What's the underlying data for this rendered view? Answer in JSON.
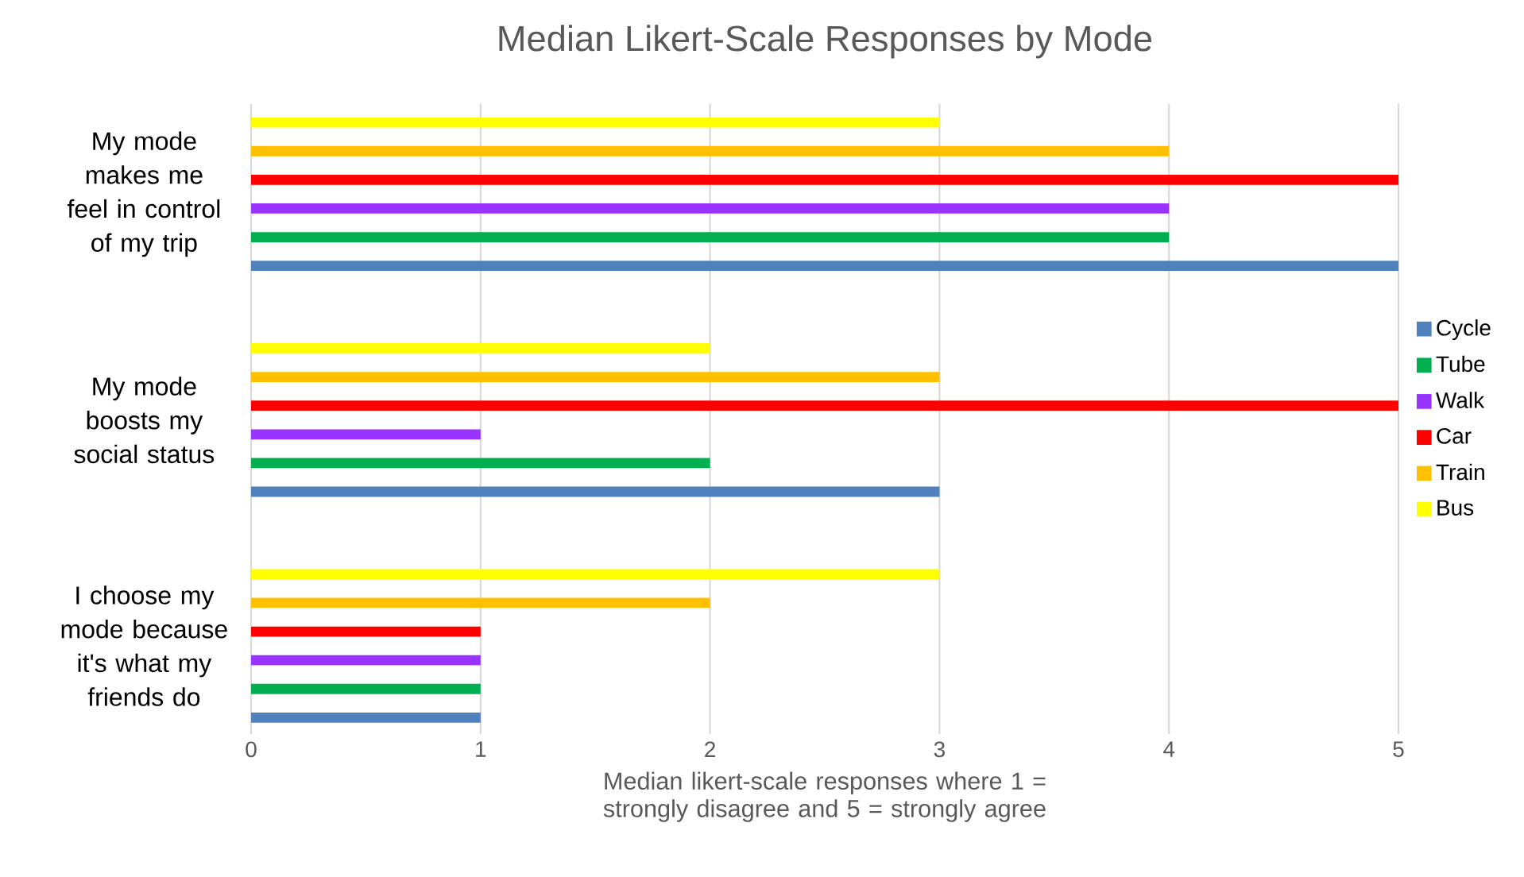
{
  "chart_data": {
    "type": "bar",
    "orientation": "horizontal",
    "title": "Median Likert-Scale Responses by Mode",
    "xlabel": "Median likert-scale responses where 1 = strongly disagree and 5 = strongly agree",
    "categories": [
      "My mode makes me feel in control of my trip",
      "My mode boosts my social status",
      "I choose my mode because it's what my friends do"
    ],
    "series": [
      {
        "name": "Cycle",
        "color": "#4f81bd",
        "values": [
          5,
          3,
          1
        ]
      },
      {
        "name": "Tube",
        "color": "#00b050",
        "values": [
          4,
          2,
          1
        ]
      },
      {
        "name": "Walk",
        "color": "#9933ff",
        "values": [
          4,
          1,
          1
        ]
      },
      {
        "name": "Car",
        "color": "#ff0000",
        "values": [
          5,
          5,
          1
        ]
      },
      {
        "name": "Train",
        "color": "#ffc000",
        "values": [
          4,
          3,
          2
        ]
      },
      {
        "name": "Bus",
        "color": "#ffff00",
        "values": [
          3,
          2,
          3
        ]
      }
    ],
    "xlim": [
      0,
      5
    ],
    "xticks": [
      0,
      1,
      2,
      3,
      4,
      5
    ],
    "grid": "x",
    "legend": "right"
  }
}
